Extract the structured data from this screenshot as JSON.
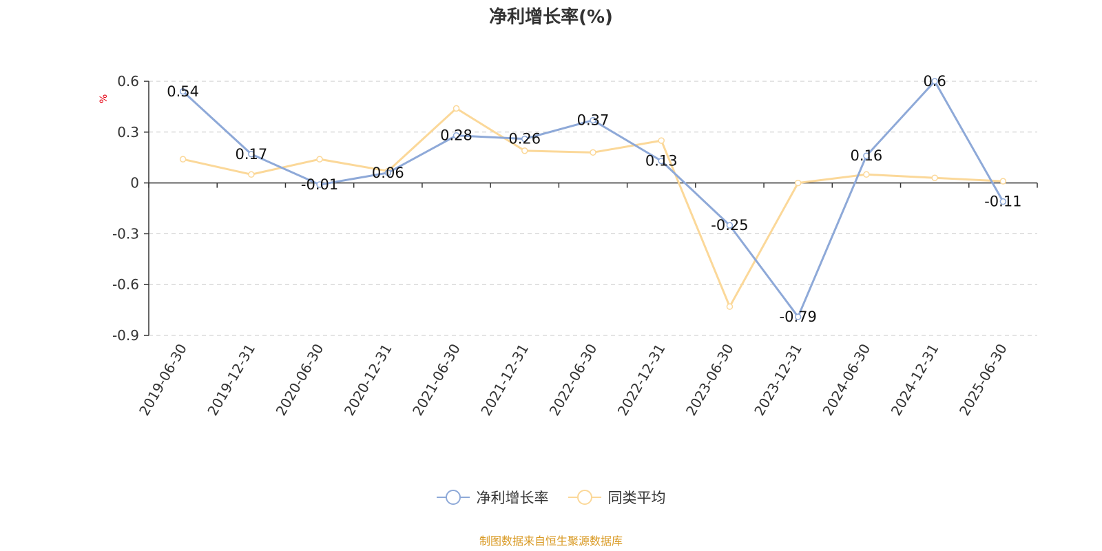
{
  "title": "净利增长率(%)",
  "source_note": "制图数据来自恒生聚源数据库",
  "colors": {
    "series1": "#8ea9d8",
    "series2": "#fbd899",
    "axis": "#333333",
    "grid": "#c8c8c8",
    "unit": "#e60012"
  },
  "chart_data": {
    "type": "line",
    "title": "净利增长率(%)",
    "ylabel": "%",
    "xlabel": "",
    "categories": [
      "2019-06-30",
      "2019-12-31",
      "2020-06-30",
      "2020-12-31",
      "2021-06-30",
      "2021-12-31",
      "2022-06-30",
      "2022-12-31",
      "2023-06-30",
      "2023-12-31",
      "2024-06-30",
      "2024-12-31",
      "2025-06-30"
    ],
    "ylim": [
      -0.9,
      0.6
    ],
    "yticks": [
      "0.6",
      "0.3",
      "0",
      "-0.3",
      "-0.6",
      "-0.9"
    ],
    "grid": true,
    "legend_position": "bottom",
    "series": [
      {
        "name": "净利增长率",
        "values": [
          0.54,
          0.17,
          -0.01,
          0.06,
          0.28,
          0.26,
          0.37,
          0.13,
          -0.25,
          -0.79,
          0.16,
          0.6,
          -0.11
        ],
        "labels": [
          "0.54",
          "0.17",
          "-0.01",
          "0.06",
          "0.28",
          "0.26",
          "0.37",
          "0.13",
          "-0.25",
          "-0.79",
          "0.16",
          "0.6",
          "-0.11"
        ]
      },
      {
        "name": "同类平均",
        "values": [
          0.14,
          0.05,
          0.14,
          0.07,
          0.44,
          0.19,
          0.18,
          0.25,
          -0.73,
          0.0,
          0.05,
          0.03,
          0.01
        ]
      }
    ]
  }
}
